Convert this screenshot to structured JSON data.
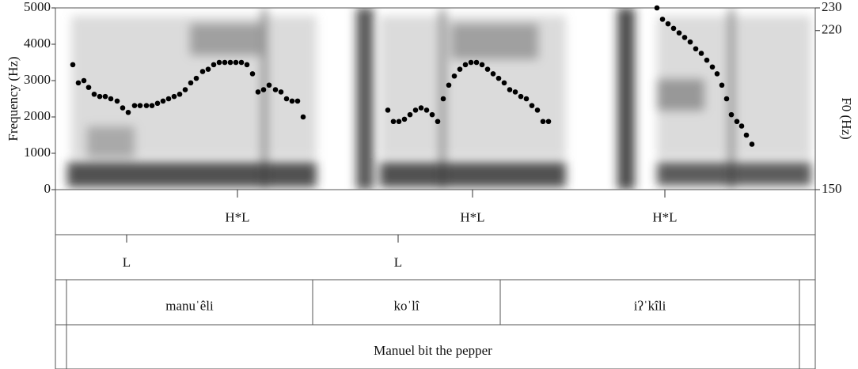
{
  "chart_data": {
    "type": "scatter",
    "ylabel": "Frequency (Hz)",
    "y2label": "F0 (Hz)",
    "xlim": [
      0,
      1920
    ],
    "ylim": [
      0,
      5000
    ],
    "yticks": [
      0,
      1000,
      2000,
      3000,
      4000,
      5000
    ],
    "y2lim": [
      150,
      230
    ],
    "y2ticks": [
      150,
      220,
      230
    ],
    "series": [
      {
        "name": "F0",
        "color": "#000000",
        "axis": "y2",
        "x": [
          44,
          58,
          72,
          84,
          98,
          112,
          126,
          140,
          156,
          170,
          184,
          200,
          214,
          230,
          244,
          258,
          272,
          286,
          300,
          314,
          328,
          342,
          356,
          372,
          386,
          400,
          414,
          428,
          442,
          456,
          470,
          484,
          498,
          512,
          526,
          540,
          556,
          570,
          584,
          598,
          612,
          626,
          840,
          854,
          868,
          882,
          896,
          910,
          924,
          938,
          952,
          966,
          980,
          994,
          1008,
          1022,
          1036,
          1050,
          1064,
          1078,
          1092,
          1106,
          1120,
          1134,
          1148,
          1162,
          1176,
          1190,
          1204,
          1218,
          1232,
          1246,
          1520,
          1534,
          1548,
          1562,
          1576,
          1590,
          1604,
          1618,
          1632,
          1646,
          1660,
          1672,
          1684,
          1696,
          1708,
          1722,
          1734,
          1746,
          1760
        ],
        "values": [
          205,
          197,
          198,
          195,
          192,
          191,
          191,
          190,
          189,
          186,
          184,
          187,
          187,
          187,
          187,
          188,
          189,
          190,
          191,
          192,
          194,
          197,
          199,
          202,
          203,
          205,
          206,
          206,
          206,
          206,
          206,
          205,
          201,
          193,
          194,
          196,
          194,
          193,
          190,
          189,
          189,
          182,
          185,
          180,
          180,
          181,
          183,
          185,
          186,
          185,
          183,
          180,
          190,
          196,
          200,
          203,
          205,
          206,
          206,
          205,
          203,
          201,
          199,
          197,
          194,
          193,
          191,
          190,
          187,
          185,
          180,
          180,
          230,
          225,
          223,
          221,
          219,
          217,
          215,
          212,
          210,
          207,
          204,
          201,
          196,
          190,
          183,
          180,
          178,
          174,
          170
        ]
      }
    ],
    "tiers": [
      {
        "points": [
          {
            "time": 460,
            "label": "H*L"
          },
          {
            "time": 1054,
            "label": "H*L"
          },
          {
            "time": 1540,
            "label": "H*L"
          }
        ]
      },
      {
        "points": [
          {
            "time": 180,
            "label": "L"
          },
          {
            "time": 866,
            "label": "L"
          }
        ]
      },
      {
        "intervals": [
          {
            "start": 28,
            "end": 650,
            "label": "manuˈêli"
          },
          {
            "start": 650,
            "end": 1124,
            "label": "koˈlî"
          },
          {
            "start": 1124,
            "end": 1880,
            "label": "iʔˈkîli"
          }
        ]
      },
      {
        "intervals": [
          {
            "start": 28,
            "end": 1880,
            "label": "Manuel bit the pepper"
          }
        ]
      }
    ]
  }
}
